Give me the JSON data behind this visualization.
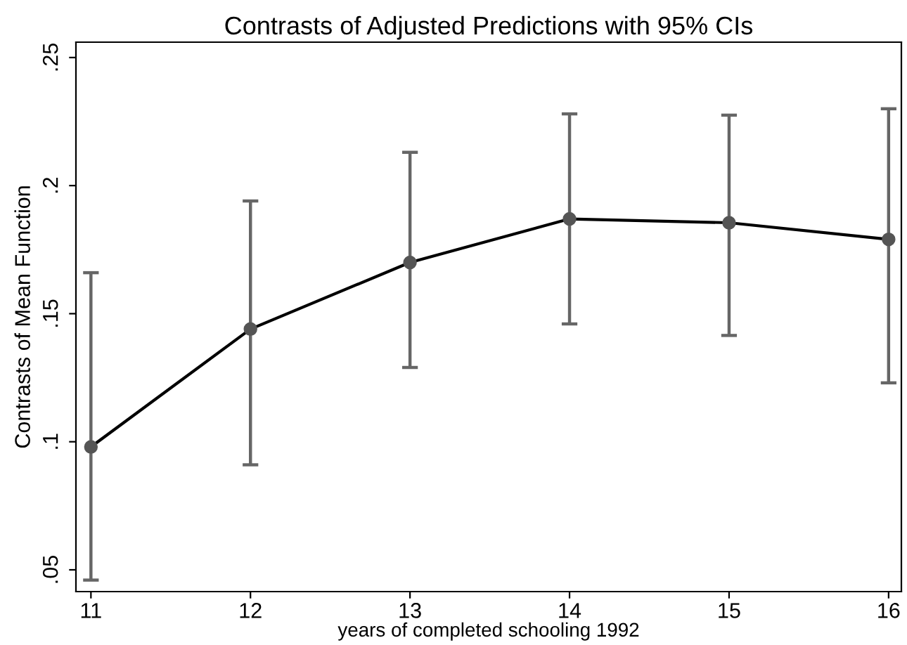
{
  "chart_data": {
    "type": "line",
    "title": "Contrasts of Adjusted Predictions with 95% CIs",
    "xlabel": "years of completed schooling 1992",
    "ylabel": "Contrasts of Mean Function",
    "x": [
      11,
      12,
      13,
      14,
      15,
      16
    ],
    "series": [
      {
        "color": "#000000",
        "values": [
          0.098,
          0.144,
          0.17,
          0.187,
          0.1855,
          0.179
        ],
        "errors": [
          [
            0.046,
            0.166
          ],
          [
            0.091,
            0.194
          ],
          [
            0.129,
            0.213
          ],
          [
            0.146,
            0.228
          ],
          [
            0.1415,
            0.2275
          ],
          [
            0.123,
            0.23
          ]
        ]
      }
    ],
    "marker": "circle",
    "line_style": "solid",
    "grid": false,
    "legend": false,
    "xlim": [
      10.906,
      16.08
    ],
    "xticks": [
      11,
      12,
      13,
      14,
      15,
      16
    ],
    "ylim": [
      0.0415,
      0.256
    ],
    "yticks": [
      {
        "value": 0.05,
        "label": ".05"
      },
      {
        "value": 0.1,
        "label": ".1"
      },
      {
        "value": 0.15,
        "label": ".15"
      },
      {
        "value": 0.2,
        "label": ".2"
      },
      {
        "value": 0.25,
        "label": ".25"
      }
    ]
  }
}
